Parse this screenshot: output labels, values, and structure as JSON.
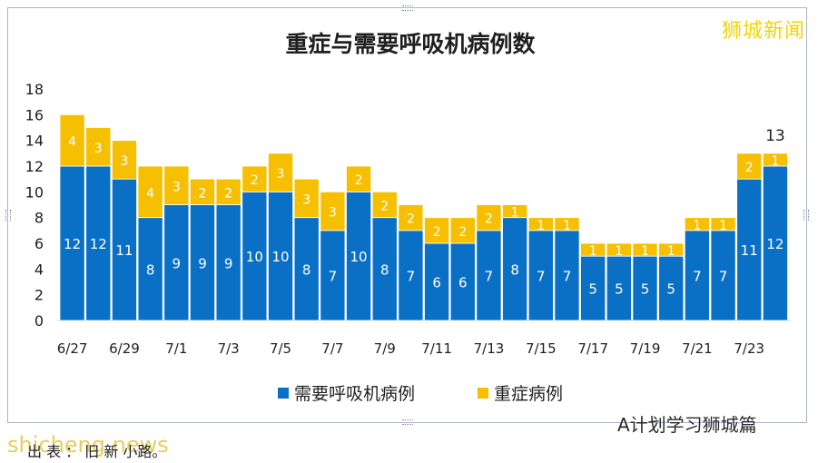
{
  "brand": "狮城新闻",
  "watermark_right": "A计划学习狮城篇",
  "watermark_left": "shicheng.news",
  "caption": "出 表 ：   旧   新 小路。",
  "colors": {
    "ventilator": "#0a70c6",
    "severe": "#f6c000",
    "text": "#1f1f1f"
  },
  "chart_data": {
    "type": "bar",
    "stacked": true,
    "title": "重症与需要呼吸机病例数",
    "categories": [
      "6/27",
      "6/28",
      "6/29",
      "6/30",
      "7/1",
      "7/2",
      "7/3",
      "7/4",
      "7/5",
      "7/6",
      "7/7",
      "7/8",
      "7/9",
      "7/10",
      "7/11",
      "7/12",
      "7/13",
      "7/14",
      "7/15",
      "7/16",
      "7/17",
      "7/18",
      "7/19",
      "7/20",
      "7/21",
      "7/22",
      "7/23",
      "7/24"
    ],
    "x_tick_labels": [
      "6/27",
      "6/29",
      "7/1",
      "7/3",
      "7/5",
      "7/7",
      "7/9",
      "7/11",
      "7/13",
      "7/15",
      "7/17",
      "7/19",
      "7/21",
      "7/23"
    ],
    "series": [
      {
        "name": "需要呼吸机病例",
        "values": [
          12,
          12,
          11,
          8,
          9,
          9,
          9,
          10,
          10,
          8,
          7,
          10,
          8,
          7,
          6,
          6,
          7,
          8,
          7,
          7,
          5,
          5,
          5,
          5,
          7,
          7,
          11,
          12
        ]
      },
      {
        "name": "重症病例",
        "values": [
          4,
          3,
          3,
          4,
          3,
          2,
          2,
          2,
          3,
          3,
          3,
          2,
          2,
          2,
          2,
          2,
          2,
          1,
          1,
          1,
          1,
          1,
          1,
          1,
          1,
          1,
          2,
          1
        ]
      }
    ],
    "total_label": {
      "category": "7/24",
      "text": "13"
    },
    "ylim": [
      0,
      18
    ],
    "y_ticks": [
      0,
      2,
      4,
      6,
      8,
      10,
      12,
      14,
      16,
      18
    ],
    "grid": false,
    "legend": "bottom"
  }
}
